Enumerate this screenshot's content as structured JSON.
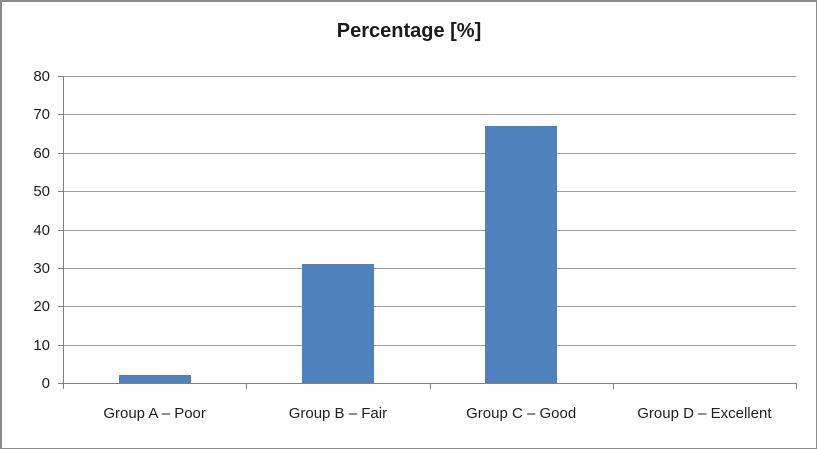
{
  "chart_data": {
    "type": "bar",
    "title": "Percentage [%]",
    "categories": [
      "Group A – Poor",
      "Group B – Fair",
      "Group C – Good",
      "Group D – Excellent"
    ],
    "values": [
      2,
      31,
      67,
      0
    ],
    "xlabel": "",
    "ylabel": "",
    "ylim": [
      0,
      80
    ],
    "yticks": [
      0,
      10,
      20,
      30,
      40,
      50,
      60,
      70,
      80
    ],
    "grid": true,
    "legend_position": "none",
    "bar_color": "#4F81BD",
    "gridline_color": "#9c9c9c",
    "axis_color": "#808080",
    "text_color": "#1f1f1f",
    "background_color": "#FFFFFF",
    "frame_border_color": "#8a8a8a"
  }
}
